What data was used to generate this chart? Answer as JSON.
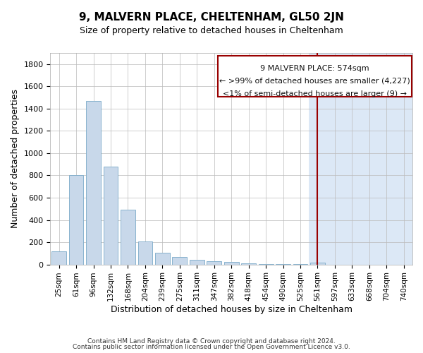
{
  "title": "9, MALVERN PLACE, CHELTENHAM, GL50 2JN",
  "subtitle": "Size of property relative to detached houses in Cheltenham",
  "xlabel": "Distribution of detached houses by size in Cheltenham",
  "ylabel": "Number of detached properties",
  "bar_color": "#c8d8ea",
  "bar_edge_color": "#7aaac8",
  "background_color": "#ffffff",
  "highlight_bg_color": "#dce8f6",
  "vline_color": "#990000",
  "annotation_box_color": "#990000",
  "categories": [
    "25sqm",
    "61sqm",
    "96sqm",
    "132sqm",
    "168sqm",
    "204sqm",
    "239sqm",
    "275sqm",
    "311sqm",
    "347sqm",
    "382sqm",
    "418sqm",
    "454sqm",
    "490sqm",
    "525sqm",
    "561sqm",
    "597sqm",
    "633sqm",
    "668sqm",
    "704sqm",
    "740sqm"
  ],
  "values": [
    120,
    800,
    1470,
    880,
    490,
    205,
    105,
    65,
    40,
    30,
    20,
    10,
    5,
    5,
    5,
    15,
    0,
    0,
    0,
    0,
    0
  ],
  "vline_x_index": 15,
  "annotation_line1": "9 MALVERN PLACE: 574sqm",
  "annotation_line2": "← >99% of detached houses are smaller (4,227)",
  "annotation_line3": "<1% of semi-detached houses are larger (9) →",
  "ylim": [
    0,
    1900
  ],
  "yticks": [
    0,
    200,
    400,
    600,
    800,
    1000,
    1200,
    1400,
    1600,
    1800
  ],
  "footer_line1": "Contains HM Land Registry data © Crown copyright and database right 2024.",
  "footer_line2": "Contains public sector information licensed under the Open Government Licence v3.0."
}
